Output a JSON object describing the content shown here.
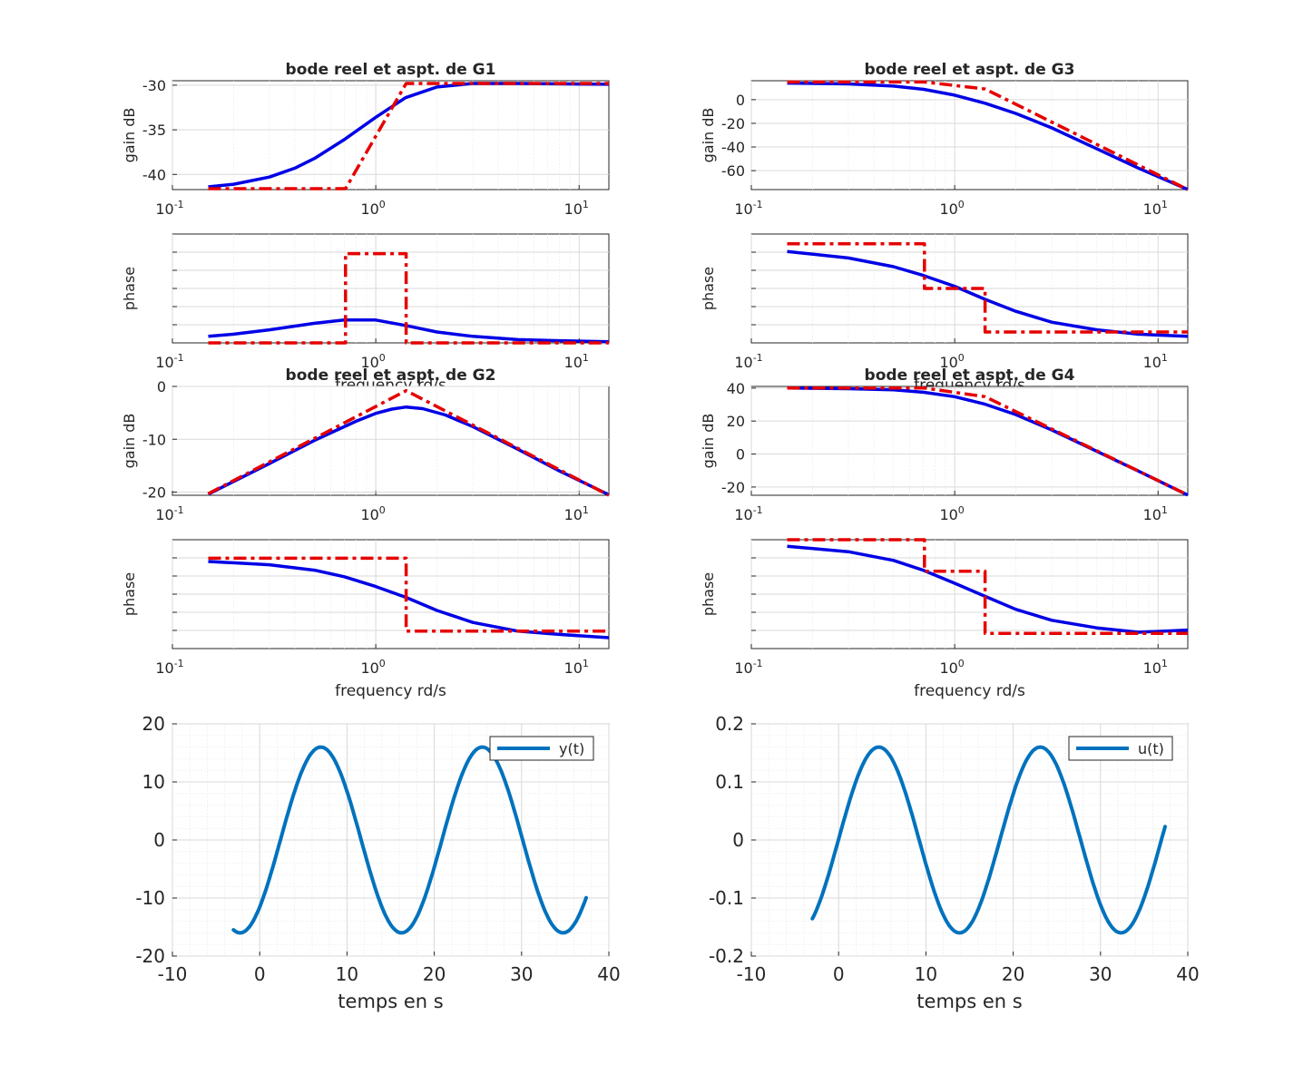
{
  "figure": {
    "colors": {
      "real": "#0000e6",
      "asymptote": "#e60000",
      "time_signal": "#0072bd"
    }
  },
  "chart_data": [
    {
      "type": "line",
      "id": "g1_gain",
      "title": "bode reel et aspt. de G1",
      "xlabel": "",
      "ylabel": "gain dB",
      "xscale": "log",
      "xlim": [
        0.1,
        14
      ],
      "ylim": [
        -41.7,
        -29.5
      ],
      "x_ticks": [
        "10^-1",
        "10^0",
        "10^1"
      ],
      "y_ticks": [
        -30,
        -35,
        -40
      ],
      "series": [
        {
          "name": "real",
          "style": "solid",
          "x": [
            0.15,
            0.2,
            0.3,
            0.4,
            0.5,
            0.7,
            1.0,
            1.4,
            2.0,
            3.0,
            5.0,
            14
          ],
          "y": [
            -41.4,
            -41.1,
            -40.3,
            -39.3,
            -38.2,
            -36.1,
            -33.6,
            -31.4,
            -30.2,
            -29.8,
            -29.8,
            -29.9
          ]
        },
        {
          "name": "asymptote",
          "style": "dashdot",
          "x": [
            0.15,
            0.71,
            1.41,
            14
          ],
          "y": [
            -41.6,
            -41.6,
            -29.8,
            -29.8
          ]
        }
      ]
    },
    {
      "type": "line",
      "id": "g1_phase",
      "title": "",
      "xlabel": "frequency rd/s",
      "ylabel": "phase",
      "xscale": "log",
      "xlim": [
        0.1,
        14
      ],
      "ylim": [
        0,
        1
      ],
      "x_ticks": [
        "10^-1",
        "10^0",
        "10^1"
      ],
      "y_ticks": [],
      "series": [
        {
          "name": "real",
          "style": "solid",
          "x": [
            0.15,
            0.2,
            0.3,
            0.5,
            0.7,
            1.0,
            1.4,
            2.0,
            3.0,
            5.0,
            8.0,
            14
          ],
          "y": [
            0.06,
            0.08,
            0.12,
            0.18,
            0.21,
            0.21,
            0.16,
            0.1,
            0.06,
            0.03,
            0.02,
            0.01
          ]
        },
        {
          "name": "asymptote",
          "style": "dashdot",
          "x": [
            0.15,
            0.71,
            0.71,
            1.41,
            1.41,
            14
          ],
          "y": [
            0.0,
            0.0,
            0.82,
            0.82,
            0.0,
            0.0
          ]
        }
      ]
    },
    {
      "type": "line",
      "id": "g2_gain",
      "title": "bode reel et aspt. de G2",
      "xlabel": "",
      "ylabel": "gain dB",
      "xscale": "log",
      "xlim": [
        0.1,
        14
      ],
      "ylim": [
        -20.6,
        0
      ],
      "x_ticks": [
        "10^-1",
        "10^0",
        "10^1"
      ],
      "y_ticks": [
        0,
        -10,
        -20
      ],
      "series": [
        {
          "name": "real",
          "style": "solid",
          "x": [
            0.15,
            0.3,
            0.5,
            0.8,
            1.0,
            1.2,
            1.41,
            1.7,
            2.2,
            3.0,
            5.0,
            8.0,
            14
          ],
          "y": [
            -20.4,
            -14.6,
            -10.2,
            -6.6,
            -5.1,
            -4.3,
            -3.9,
            -4.2,
            -5.4,
            -7.6,
            -11.9,
            -16.0,
            -20.5
          ]
        },
        {
          "name": "asymptote",
          "style": "dashdot",
          "x": [
            0.15,
            1.41,
            14
          ],
          "y": [
            -20.3,
            -0.8,
            -20.6
          ]
        }
      ]
    },
    {
      "type": "line",
      "id": "g2_phase",
      "title": "",
      "xlabel": "frequency rd/s",
      "ylabel": "phase",
      "xscale": "log",
      "xlim": [
        0.1,
        14
      ],
      "ylim": [
        0,
        1
      ],
      "x_ticks": [
        "10^-1",
        "10^0",
        "10^1"
      ],
      "y_ticks": [],
      "series": [
        {
          "name": "real",
          "style": "solid",
          "x": [
            0.15,
            0.3,
            0.5,
            0.7,
            1.0,
            1.41,
            2.0,
            3.0,
            5.0,
            8.0,
            14
          ],
          "y": [
            0.8,
            0.77,
            0.72,
            0.66,
            0.57,
            0.47,
            0.35,
            0.24,
            0.16,
            0.13,
            0.1
          ]
        },
        {
          "name": "asymptote",
          "style": "dashdot",
          "x": [
            0.15,
            1.41,
            1.41,
            14
          ],
          "y": [
            0.83,
            0.83,
            0.16,
            0.16
          ]
        }
      ]
    },
    {
      "type": "line",
      "id": "g3_gain",
      "title": "bode reel et aspt. de G3",
      "xlabel": "",
      "ylabel": "gain dB",
      "xscale": "log",
      "xlim": [
        0.1,
        14
      ],
      "ylim": [
        -76,
        16
      ],
      "x_ticks": [
        "10^-1",
        "10^0",
        "10^1"
      ],
      "y_ticks": [
        0,
        -20,
        -40,
        -60
      ],
      "series": [
        {
          "name": "real",
          "style": "solid",
          "x": [
            0.15,
            0.3,
            0.5,
            0.7,
            1.0,
            1.41,
            2.0,
            3.0,
            5.0,
            8.0,
            14
          ],
          "y": [
            14.0,
            13.3,
            11.5,
            8.8,
            3.8,
            -3.0,
            -11.7,
            -23.9,
            -41.6,
            -57.8,
            -75.9
          ]
        },
        {
          "name": "asymptote",
          "style": "dashdot",
          "x": [
            0.15,
            0.71,
            1.41,
            14
          ],
          "y": [
            14.9,
            14.9,
            9.0,
            -76.0
          ]
        }
      ]
    },
    {
      "type": "line",
      "id": "g3_phase",
      "title": "",
      "xlabel": "frequency rd/s",
      "ylabel": "phase",
      "xscale": "log",
      "xlim": [
        0.1,
        14
      ],
      "ylim": [
        0,
        1
      ],
      "x_ticks": [
        "10^-1",
        "10^0",
        "10^1"
      ],
      "y_ticks": [],
      "series": [
        {
          "name": "real",
          "style": "solid",
          "x": [
            0.15,
            0.3,
            0.5,
            0.7,
            1.0,
            1.41,
            2.0,
            3.0,
            5.0,
            8.0,
            14
          ],
          "y": [
            0.84,
            0.78,
            0.7,
            0.62,
            0.52,
            0.4,
            0.29,
            0.19,
            0.12,
            0.08,
            0.06
          ]
        },
        {
          "name": "asymptote",
          "style": "dashdot",
          "x": [
            0.15,
            0.71,
            0.71,
            1.41,
            1.41,
            14
          ],
          "y": [
            0.91,
            0.91,
            0.5,
            0.5,
            0.1,
            0.1
          ]
        }
      ]
    },
    {
      "type": "line",
      "id": "g4_gain",
      "title": "bode reel et aspt. de G4",
      "xlabel": "",
      "ylabel": "gain dB",
      "xscale": "log",
      "xlim": [
        0.1,
        14
      ],
      "ylim": [
        -25,
        41
      ],
      "x_ticks": [
        "10^-1",
        "10^0",
        "10^1"
      ],
      "y_ticks": [
        40,
        20,
        0,
        -20
      ],
      "series": [
        {
          "name": "real",
          "style": "solid",
          "x": [
            0.15,
            0.3,
            0.5,
            0.7,
            1.0,
            1.41,
            2.0,
            3.0,
            5.0,
            8.0,
            14
          ],
          "y": [
            40.0,
            39.6,
            38.9,
            37.5,
            34.8,
            30.2,
            23.9,
            14.6,
            1.6,
            -10.3,
            -24.9
          ]
        },
        {
          "name": "asymptote",
          "style": "dashdot",
          "x": [
            0.15,
            0.71,
            1.41,
            14
          ],
          "y": [
            40.0,
            40.0,
            34.8,
            -24.8
          ]
        }
      ]
    },
    {
      "type": "line",
      "id": "g4_phase",
      "title": "",
      "xlabel": "frequency rd/s",
      "ylabel": "phase",
      "xscale": "log",
      "xlim": [
        0.1,
        14
      ],
      "ylim": [
        0,
        1
      ],
      "x_ticks": [
        "10^-1",
        "10^0",
        "10^1"
      ],
      "y_ticks": [],
      "series": [
        {
          "name": "real",
          "style": "solid",
          "x": [
            0.15,
            0.3,
            0.5,
            0.7,
            1.0,
            1.41,
            2.0,
            3.0,
            5.0,
            8.0,
            14
          ],
          "y": [
            0.94,
            0.89,
            0.81,
            0.72,
            0.6,
            0.48,
            0.36,
            0.26,
            0.19,
            0.15,
            0.17
          ]
        },
        {
          "name": "asymptote",
          "style": "dashdot",
          "x": [
            0.15,
            0.71,
            0.71,
            1.41,
            1.41,
            14
          ],
          "y": [
            1.0,
            1.0,
            0.71,
            0.71,
            0.14,
            0.14
          ]
        }
      ]
    },
    {
      "type": "line",
      "id": "y_time",
      "title": "",
      "xlabel": "temps en s",
      "ylabel": "",
      "xscale": "linear",
      "xlim": [
        -10,
        40
      ],
      "ylim": [
        -20,
        20
      ],
      "x_ticks": [
        -10,
        0,
        10,
        20,
        30,
        40
      ],
      "y_ticks": [
        20,
        10,
        0,
        -10,
        -20
      ],
      "legend": {
        "label": "y(t)",
        "position": "top-right"
      },
      "signal": {
        "amplitude": 16,
        "period": 18.5,
        "peak_time": 7,
        "t_start": -3,
        "t_end": 37.4
      },
      "series": [
        {
          "name": "y(t)",
          "style": "solid",
          "x": [
            -3,
            -1.6,
            2.4,
            7,
            11.6,
            16.3,
            20.9,
            25.5,
            30.1,
            34.7,
            37.4
          ],
          "y": [
            -15.3,
            -16,
            0,
            16,
            0,
            -16,
            0,
            16,
            0,
            -16,
            -9.1
          ]
        }
      ]
    },
    {
      "type": "line",
      "id": "u_time",
      "title": "",
      "xlabel": "temps en s",
      "ylabel": "",
      "xscale": "linear",
      "xlim": [
        -10,
        40
      ],
      "ylim": [
        -0.2,
        0.2
      ],
      "x_ticks": [
        -10,
        0,
        10,
        20,
        30,
        40
      ],
      "y_ticks": [
        "0.2",
        "0.1",
        "0",
        "-0.1",
        "-0.2"
      ],
      "legend": {
        "label": "u(t)",
        "position": "top-right"
      },
      "signal": {
        "amplitude": 0.16,
        "period": 18.5,
        "peak_time": 4.6,
        "t_start": -3,
        "t_end": 37.4
      },
      "series": [
        {
          "name": "u(t)",
          "style": "solid",
          "x": [
            -3,
            0,
            4.6,
            9.2,
            13.9,
            18.5,
            23.1,
            27.7,
            32.3,
            37.4
          ],
          "y": [
            -0.138,
            0,
            0.16,
            0,
            -0.16,
            0,
            0.16,
            0,
            -0.16,
            0.03
          ]
        }
      ]
    }
  ]
}
